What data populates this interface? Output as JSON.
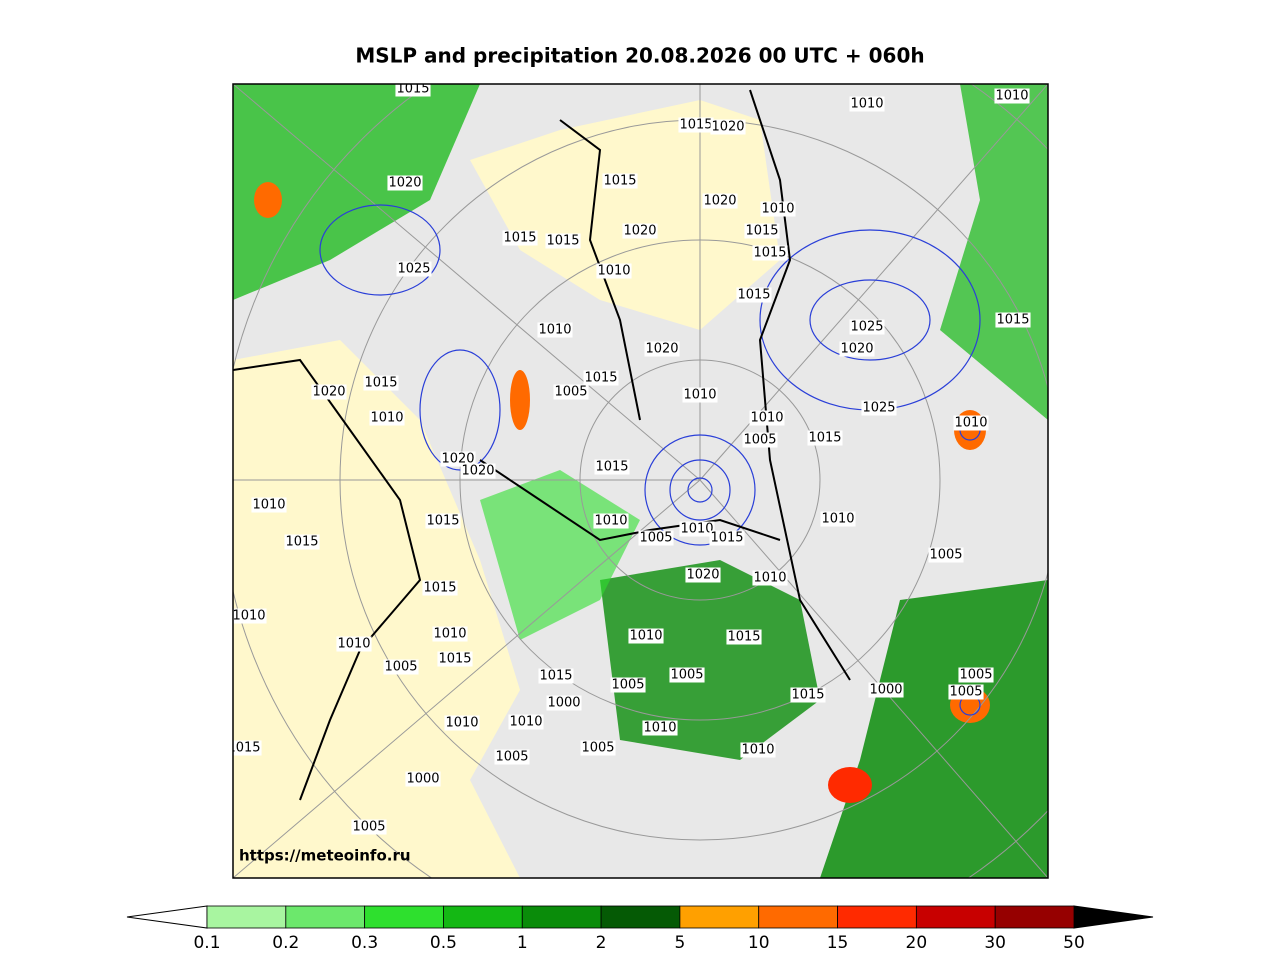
{
  "title": "MSLP and precipitation 20.08.2026 00 UTC + 060h",
  "watermark": "https://meteoinfo.ru",
  "colorbar": {
    "bounds": [
      0.1,
      0.2,
      0.3,
      0.5,
      1,
      2,
      5,
      10,
      15,
      20,
      30,
      50
    ],
    "colors": [
      "#a8f5a0",
      "#6ce86c",
      "#2ee02e",
      "#14b814",
      "#0a8c0a",
      "#055a05",
      "#ffa000",
      "#ff6a00",
      "#ff2a00",
      "#c80000",
      "#960000"
    ],
    "under_color": "#ffffff",
    "over_color": "#000000"
  },
  "isobar_labels": [
    "1015",
    "1010",
    "1010",
    "1015",
    "1020",
    "1020",
    "1015",
    "1020",
    "1010",
    "1015",
    "1020",
    "1015",
    "1015",
    "1010",
    "1015",
    "1015",
    "1025",
    "1025",
    "1020",
    "1010",
    "1020",
    "1015",
    "1005",
    "1015",
    "1025",
    "1010",
    "1010",
    "1020",
    "1010",
    "1005",
    "1015",
    "1015",
    "1010",
    "1020",
    "1015",
    "1010",
    "1015",
    "1010",
    "1005",
    "1020",
    "1010",
    "1015",
    "1020",
    "1010",
    "1010",
    "1015",
    "1005",
    "1015",
    "1010",
    "1010",
    "1005",
    "1015",
    "1015",
    "1015",
    "1010",
    "1010",
    "1015",
    "1005",
    "1005",
    "1000",
    "1005",
    "1000",
    "1005",
    "1010",
    "1010",
    "1010",
    "1005",
    "1005",
    "1000",
    "1010",
    "1005",
    "1015"
  ]
}
